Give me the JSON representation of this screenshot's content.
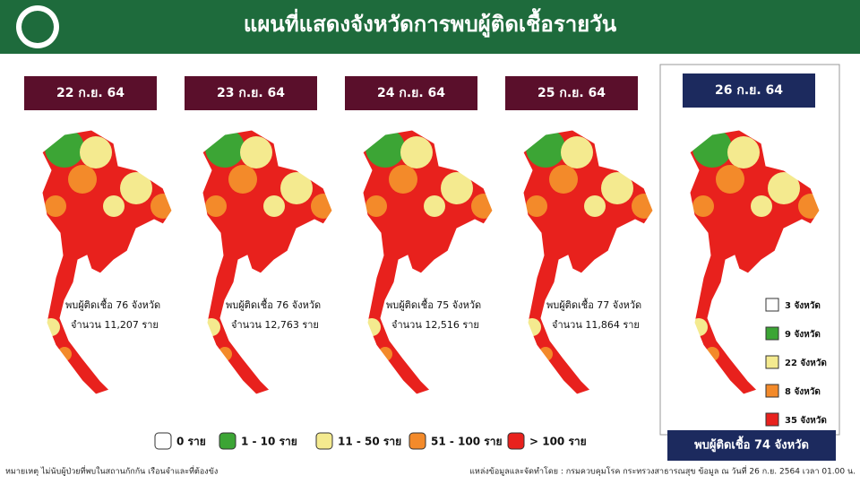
{
  "header": {
    "title": "แผนที่แสดงจังหวัดการพบผู้ติดเชื้อรายวัน"
  },
  "panels": [
    {
      "date": "22 ก.ย. 64",
      "found": "พบผู้ติดเชื้อ 76 จังหวัด",
      "count": "จำนวน 11,207 ราย"
    },
    {
      "date": "23 ก.ย. 64",
      "found": "พบผู้ติดเชื้อ 76 จังหวัด",
      "count": "จำนวน 12,763 ราย"
    },
    {
      "date": "24 ก.ย. 64",
      "found": "พบผู้ติดเชื้อ 75 จังหวัด",
      "count": "จำนวน 12,516 ราย"
    },
    {
      "date": "25 ก.ย. 64",
      "found": "พบผู้ติดเชื้อ 77 จังหวัด",
      "count": "จำนวน 11,864 ราย"
    }
  ],
  "today": {
    "date": "26 ก.ย. 64",
    "summary": "พบผู้ติดเชื้อ 74 จังหวัด",
    "counts": [
      "3 จังหวัด",
      "9 จังหวัด",
      "22 จังหวัด",
      "8 จังหวัด",
      "35 จังหวัด"
    ]
  },
  "legend": [
    "0 ราย",
    "1 - 10 ราย",
    "11 - 50 ราย",
    "51 - 100 ราย",
    "> 100 ราย"
  ],
  "footer": {
    "note": "หมายเหตุ ไม่นับผู้ป่วยที่พบในสถานกักกัน เรือนจำและที่ต้องขัง",
    "source": "แหล่งข้อมูลและจัดทำโดย : กรมควบคุมโรค กระทรวงสาธารณสุข ข้อมูล ณ วันที่ 26 ก.ย. 2564 เวลา 01.00 น."
  }
}
